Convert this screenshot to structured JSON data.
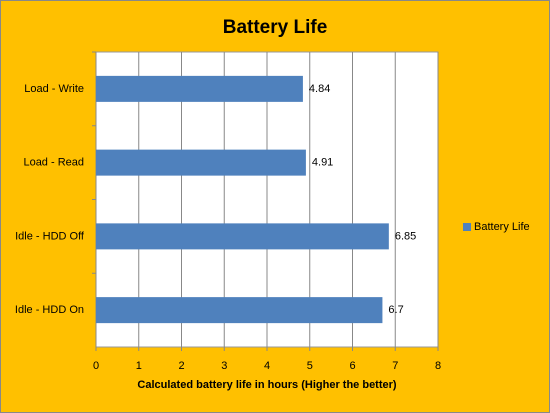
{
  "chart_data": {
    "type": "hbar",
    "title": "Battery Life",
    "categories": [
      "Load - Write",
      "Load - Read",
      "Idle - HDD Off",
      "Idle - HDD On"
    ],
    "series": [
      {
        "name": "Battery Life",
        "color": "#4f81bd",
        "values": [
          4.84,
          4.91,
          6.85,
          6.7
        ]
      }
    ],
    "xlabel": "Calculated battery life in hours (Higher the better)",
    "xlim": [
      0,
      8
    ],
    "xticks": [
      0,
      1,
      2,
      3,
      4,
      5,
      6,
      7,
      8
    ],
    "grid": true,
    "legend": "right"
  }
}
